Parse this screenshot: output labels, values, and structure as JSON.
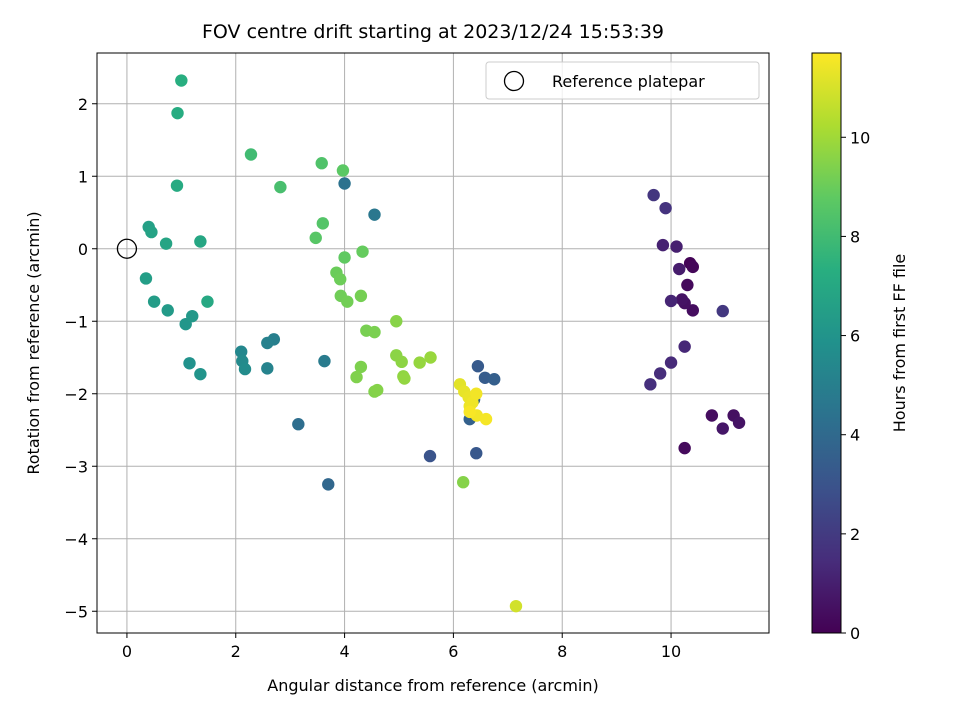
{
  "chart_data": {
    "type": "scatter",
    "title": "FOV centre drift starting at 2023/12/24 15:53:39",
    "xlabel": "Angular distance from reference (arcmin)",
    "ylabel": "Rotation from reference (arcmin)",
    "xlim": [
      -0.55,
      11.8
    ],
    "ylim": [
      -5.3,
      2.7
    ],
    "xticks": [
      0,
      2,
      4,
      6,
      8,
      10
    ],
    "yticks": [
      2,
      1,
      0,
      -1,
      -2,
      -3,
      -4,
      -5
    ],
    "grid": true,
    "legend": {
      "placement": "top-right",
      "entries": [
        "Reference platepar"
      ]
    },
    "reference_point": {
      "x": 0,
      "y": 0
    },
    "colorbar": {
      "label": "Hours from first FF file",
      "range": [
        0,
        11.7
      ],
      "ticks": [
        0,
        2,
        4,
        6,
        8,
        10
      ],
      "colormap": "viridis"
    },
    "points": [
      {
        "x": 10.35,
        "y": -0.2,
        "c": 0.1
      },
      {
        "x": 10.4,
        "y": -0.25,
        "c": 0.2
      },
      {
        "x": 10.3,
        "y": -0.5,
        "c": 0.3
      },
      {
        "x": 10.4,
        "y": -0.85,
        "c": 0.4
      },
      {
        "x": 10.25,
        "y": -0.75,
        "c": 0.5
      },
      {
        "x": 10.2,
        "y": -0.7,
        "c": 0.6
      },
      {
        "x": 10.25,
        "y": -2.75,
        "c": 0.3
      },
      {
        "x": 10.75,
        "y": -2.3,
        "c": 0.4
      },
      {
        "x": 11.15,
        "y": -2.3,
        "c": 0.5
      },
      {
        "x": 11.25,
        "y": -2.4,
        "c": 0.6
      },
      {
        "x": 10.95,
        "y": -2.48,
        "c": 0.7
      },
      {
        "x": 10.15,
        "y": -0.28,
        "c": 0.9
      },
      {
        "x": 10.1,
        "y": 0.03,
        "c": 1.0
      },
      {
        "x": 9.85,
        "y": 0.05,
        "c": 1.1
      },
      {
        "x": 10.0,
        "y": -0.72,
        "c": 1.2
      },
      {
        "x": 10.25,
        "y": -1.35,
        "c": 1.3
      },
      {
        "x": 10.0,
        "y": -1.57,
        "c": 1.4
      },
      {
        "x": 9.8,
        "y": -1.72,
        "c": 1.5
      },
      {
        "x": 9.62,
        "y": -1.87,
        "c": 1.6
      },
      {
        "x": 9.9,
        "y": 0.56,
        "c": 1.7
      },
      {
        "x": 9.68,
        "y": 0.74,
        "c": 1.8
      },
      {
        "x": 10.95,
        "y": -0.86,
        "c": 1.9
      },
      {
        "x": 5.57,
        "y": -2.86,
        "c": 3.0
      },
      {
        "x": 6.42,
        "y": -2.82,
        "c": 3.2
      },
      {
        "x": 6.45,
        "y": -1.62,
        "c": 3.3
      },
      {
        "x": 6.58,
        "y": -1.78,
        "c": 3.4
      },
      {
        "x": 6.75,
        "y": -1.8,
        "c": 3.5
      },
      {
        "x": 6.3,
        "y": -2.35,
        "c": 3.6
      },
      {
        "x": 6.38,
        "y": -2.08,
        "c": 3.7
      },
      {
        "x": 3.7,
        "y": -3.25,
        "c": 3.9
      },
      {
        "x": 3.15,
        "y": -2.42,
        "c": 4.2
      },
      {
        "x": 4.0,
        "y": 0.9,
        "c": 4.4
      },
      {
        "x": 4.55,
        "y": 0.47,
        "c": 4.6
      },
      {
        "x": 3.63,
        "y": -1.55,
        "c": 4.8
      },
      {
        "x": 2.7,
        "y": -1.25,
        "c": 5.0
      },
      {
        "x": 2.58,
        "y": -1.3,
        "c": 5.1
      },
      {
        "x": 2.58,
        "y": -1.65,
        "c": 5.2
      },
      {
        "x": 2.1,
        "y": -1.42,
        "c": 5.4
      },
      {
        "x": 2.12,
        "y": -1.55,
        "c": 5.5
      },
      {
        "x": 2.17,
        "y": -1.66,
        "c": 5.6
      },
      {
        "x": 1.15,
        "y": -1.58,
        "c": 5.9
      },
      {
        "x": 1.35,
        "y": -1.73,
        "c": 6.0
      },
      {
        "x": 1.08,
        "y": -1.04,
        "c": 6.1
      },
      {
        "x": 1.2,
        "y": -0.93,
        "c": 6.2
      },
      {
        "x": 0.75,
        "y": -0.85,
        "c": 6.3
      },
      {
        "x": 0.5,
        "y": -0.73,
        "c": 6.4
      },
      {
        "x": 0.35,
        "y": -0.41,
        "c": 6.5
      },
      {
        "x": 0.4,
        "y": 0.3,
        "c": 6.6
      },
      {
        "x": 0.45,
        "y": 0.23,
        "c": 6.7
      },
      {
        "x": 0.72,
        "y": 0.07,
        "c": 6.8
      },
      {
        "x": 1.35,
        "y": 0.1,
        "c": 6.9
      },
      {
        "x": 1.48,
        "y": -0.73,
        "c": 7.0
      },
      {
        "x": 0.92,
        "y": 0.87,
        "c": 7.1
      },
      {
        "x": 0.93,
        "y": 1.87,
        "c": 7.2
      },
      {
        "x": 1.0,
        "y": 2.32,
        "c": 7.3
      },
      {
        "x": 2.28,
        "y": 1.3,
        "c": 8.0
      },
      {
        "x": 2.82,
        "y": 0.85,
        "c": 8.2
      },
      {
        "x": 3.58,
        "y": 1.18,
        "c": 8.4
      },
      {
        "x": 3.6,
        "y": 0.35,
        "c": 8.5
      },
      {
        "x": 3.47,
        "y": 0.15,
        "c": 8.6
      },
      {
        "x": 3.97,
        "y": 1.08,
        "c": 8.7
      },
      {
        "x": 4.0,
        "y": -0.12,
        "c": 8.8
      },
      {
        "x": 4.33,
        "y": -0.04,
        "c": 8.9
      },
      {
        "x": 3.85,
        "y": -0.33,
        "c": 9.0
      },
      {
        "x": 3.92,
        "y": -0.42,
        "c": 9.05
      },
      {
        "x": 3.93,
        "y": -0.65,
        "c": 9.1
      },
      {
        "x": 4.05,
        "y": -0.73,
        "c": 9.15
      },
      {
        "x": 4.3,
        "y": -0.65,
        "c": 9.2
      },
      {
        "x": 4.4,
        "y": -1.13,
        "c": 9.25
      },
      {
        "x": 4.55,
        "y": -1.15,
        "c": 9.3
      },
      {
        "x": 4.3,
        "y": -1.63,
        "c": 9.35
      },
      {
        "x": 4.22,
        "y": -1.77,
        "c": 9.4
      },
      {
        "x": 4.55,
        "y": -1.97,
        "c": 9.45
      },
      {
        "x": 4.6,
        "y": -1.95,
        "c": 9.5
      },
      {
        "x": 4.95,
        "y": -1.0,
        "c": 9.55
      },
      {
        "x": 4.95,
        "y": -1.47,
        "c": 9.6
      },
      {
        "x": 5.05,
        "y": -1.56,
        "c": 9.65
      },
      {
        "x": 5.08,
        "y": -1.76,
        "c": 9.7
      },
      {
        "x": 5.1,
        "y": -1.79,
        "c": 9.75
      },
      {
        "x": 5.38,
        "y": -1.57,
        "c": 9.8
      },
      {
        "x": 5.58,
        "y": -1.5,
        "c": 9.85
      },
      {
        "x": 6.18,
        "y": -3.22,
        "c": 9.5
      },
      {
        "x": 6.12,
        "y": -1.87,
        "c": 11.2
      },
      {
        "x": 6.2,
        "y": -1.97,
        "c": 11.3
      },
      {
        "x": 6.28,
        "y": -2.05,
        "c": 11.35
      },
      {
        "x": 6.3,
        "y": -2.17,
        "c": 11.4
      },
      {
        "x": 6.35,
        "y": -2.12,
        "c": 11.45
      },
      {
        "x": 6.42,
        "y": -2.0,
        "c": 11.5
      },
      {
        "x": 6.43,
        "y": -2.3,
        "c": 11.5
      },
      {
        "x": 6.6,
        "y": -2.35,
        "c": 11.55
      },
      {
        "x": 6.3,
        "y": -2.25,
        "c": 11.6
      },
      {
        "x": 7.15,
        "y": -4.93,
        "c": 10.9
      }
    ]
  }
}
